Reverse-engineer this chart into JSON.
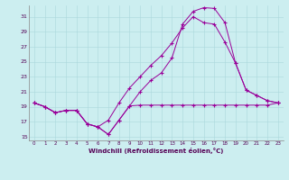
{
  "bg_color": "#cceef0",
  "grid_color": "#aad8dc",
  "line_color": "#990099",
  "xlabel": "Windchill (Refroidissement éolien,°C)",
  "xlim": [
    -0.5,
    23.5
  ],
  "ylim": [
    14.5,
    32.5
  ],
  "yticks": [
    15,
    17,
    19,
    21,
    23,
    25,
    27,
    29,
    31
  ],
  "xticks": [
    0,
    1,
    2,
    3,
    4,
    5,
    6,
    7,
    8,
    9,
    10,
    11,
    12,
    13,
    14,
    15,
    16,
    17,
    18,
    19,
    20,
    21,
    22,
    23
  ],
  "line1_x": [
    0,
    1,
    2,
    3,
    4,
    5,
    6,
    7,
    8,
    9,
    10,
    11,
    12,
    13,
    14,
    15,
    16,
    17,
    18,
    19,
    20,
    21,
    22,
    23
  ],
  "line1_y": [
    19.5,
    19.0,
    18.2,
    18.5,
    18.5,
    16.7,
    16.3,
    15.3,
    17.2,
    19.1,
    19.2,
    19.2,
    19.2,
    19.2,
    19.2,
    19.2,
    19.2,
    19.2,
    19.2,
    19.2,
    19.2,
    19.2,
    19.2,
    19.5
  ],
  "line2_x": [
    0,
    1,
    2,
    3,
    4,
    5,
    6,
    7,
    8,
    9,
    10,
    11,
    12,
    13,
    14,
    15,
    16,
    17,
    18,
    19,
    20,
    21,
    22,
    23
  ],
  "line2_y": [
    19.5,
    19.0,
    18.2,
    18.5,
    18.5,
    16.7,
    16.3,
    15.3,
    17.2,
    19.1,
    21.0,
    22.5,
    23.5,
    25.5,
    30.0,
    31.7,
    32.2,
    32.1,
    30.2,
    24.8,
    21.2,
    20.5,
    19.8,
    19.5
  ],
  "line3_x": [
    0,
    1,
    2,
    3,
    4,
    5,
    6,
    7,
    8,
    9,
    10,
    11,
    12,
    13,
    14,
    15,
    16,
    17,
    18,
    19,
    20,
    21,
    22,
    23
  ],
  "line3_y": [
    19.5,
    19.0,
    18.2,
    18.5,
    18.5,
    16.7,
    16.3,
    17.2,
    19.5,
    21.5,
    23.0,
    24.5,
    25.8,
    27.5,
    29.5,
    31.0,
    30.2,
    30.0,
    27.6,
    24.8,
    21.2,
    20.5,
    19.8,
    19.5
  ]
}
